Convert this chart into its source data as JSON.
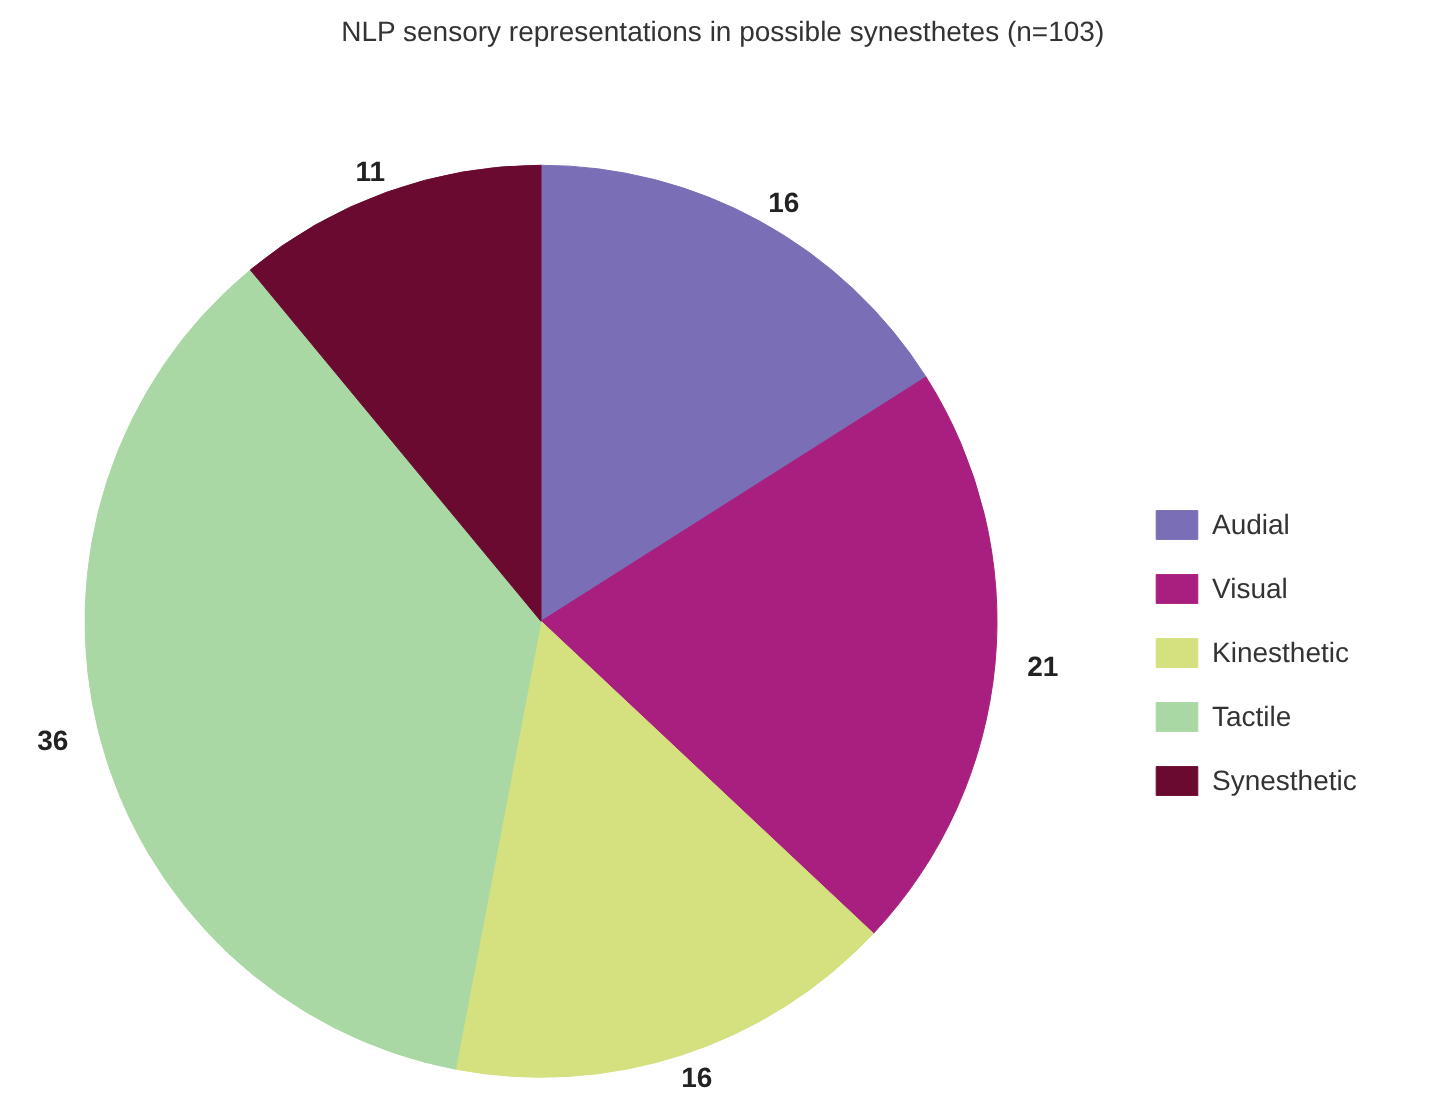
{
  "chart_data": {
    "type": "pie",
    "title": "NLP sensory representations in possible synesthetes (n=103)",
    "categories": [
      "Audial",
      "Visual",
      "Kinesthetic",
      "Tactile",
      "Synesthetic"
    ],
    "values": [
      16,
      21,
      16,
      36,
      11
    ],
    "colors": [
      "#7a6fb7",
      "#a81f80",
      "#d5e07f",
      "#a9d8a4",
      "#6b0a30"
    ],
    "data_labels": true,
    "legend": "right"
  }
}
